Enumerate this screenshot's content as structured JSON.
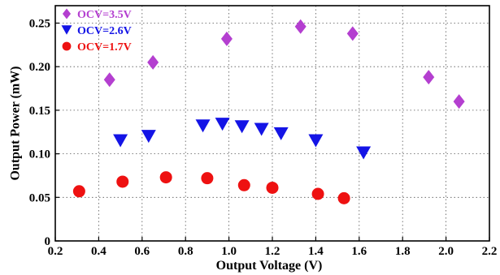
{
  "chart_data": {
    "type": "scatter",
    "title": "",
    "xlabel": "Output Voltage (V)",
    "ylabel": "Output Power (mW)",
    "xlim": [
      0.2,
      2.2
    ],
    "ylim": [
      0,
      0.27
    ],
    "xticks": [
      0.2,
      0.4,
      0.6,
      0.8,
      1.0,
      1.2,
      1.4,
      1.6,
      1.8,
      2.0,
      2.2
    ],
    "xtick_labels": [
      "0.2",
      "0.4",
      "0.6",
      "0.8",
      "1.0",
      "1.2",
      "1.4",
      "1.6",
      "1.8",
      "2.0",
      "2.2"
    ],
    "yticks": [
      0,
      0.05,
      0.1,
      0.15,
      0.2,
      0.25
    ],
    "ytick_labels": [
      "0",
      "0.05",
      "0.10",
      "0.15",
      "0.20",
      "0.25"
    ],
    "grid": true,
    "legend_position": "top-left",
    "series": [
      {
        "name": "OCV=3.5V",
        "marker": "diamond",
        "color": "#b43fd0",
        "points": [
          [
            0.45,
            0.185
          ],
          [
            0.65,
            0.205
          ],
          [
            0.99,
            0.232
          ],
          [
            1.33,
            0.246
          ],
          [
            1.57,
            0.238
          ],
          [
            1.92,
            0.188
          ],
          [
            2.06,
            0.16
          ]
        ]
      },
      {
        "name": "OCV=2.6V",
        "marker": "triangle-down",
        "color": "#1414e6",
        "points": [
          [
            0.5,
            0.115
          ],
          [
            0.63,
            0.12
          ],
          [
            0.88,
            0.132
          ],
          [
            0.97,
            0.134
          ],
          [
            1.06,
            0.131
          ],
          [
            1.15,
            0.128
          ],
          [
            1.24,
            0.123
          ],
          [
            1.4,
            0.115
          ],
          [
            1.62,
            0.101
          ]
        ]
      },
      {
        "name": "OCV=1.7V",
        "marker": "circle",
        "color": "#ee1111",
        "points": [
          [
            0.31,
            0.057
          ],
          [
            0.51,
            0.068
          ],
          [
            0.71,
            0.073
          ],
          [
            0.9,
            0.072
          ],
          [
            1.07,
            0.064
          ],
          [
            1.2,
            0.061
          ],
          [
            1.41,
            0.054
          ],
          [
            1.53,
            0.049
          ]
        ]
      }
    ]
  }
}
